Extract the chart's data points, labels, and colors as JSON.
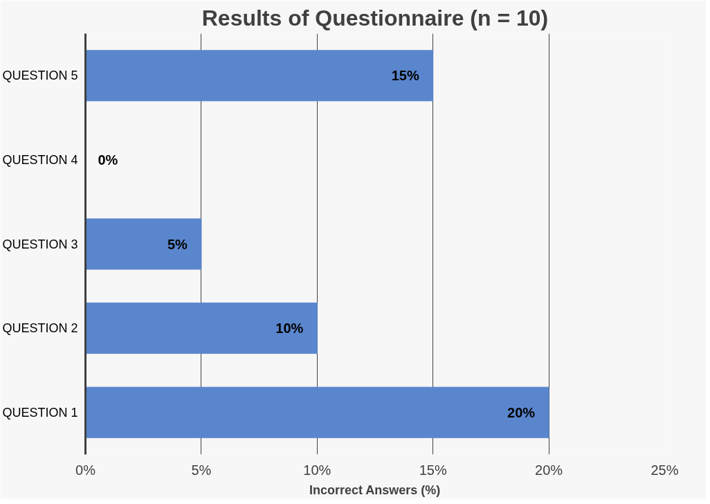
{
  "chart_data": {
    "type": "bar",
    "orientation": "horizontal",
    "title": "Results of Questionnaire (n = 10)",
    "xlabel": "Incorrect Answers (%)",
    "categories": [
      "QUESTION 5",
      "QUESTION 4",
      "QUESTION 3",
      "QUESTION 2",
      "QUESTION 1"
    ],
    "values": [
      15,
      0,
      5,
      10,
      20
    ],
    "value_labels": [
      "15%",
      "0%",
      "5%",
      "10%",
      "20%"
    ],
    "color": "#5a86cd",
    "xlim": [
      0,
      25
    ],
    "xticks": [
      {
        "value": 0,
        "label": "0%"
      },
      {
        "value": 5,
        "label": "5%"
      },
      {
        "value": 10,
        "label": "10%"
      },
      {
        "value": 15,
        "label": "15%"
      },
      {
        "value": 20,
        "label": "20%"
      },
      {
        "value": 25,
        "label": "25%"
      }
    ],
    "grid": "x"
  }
}
